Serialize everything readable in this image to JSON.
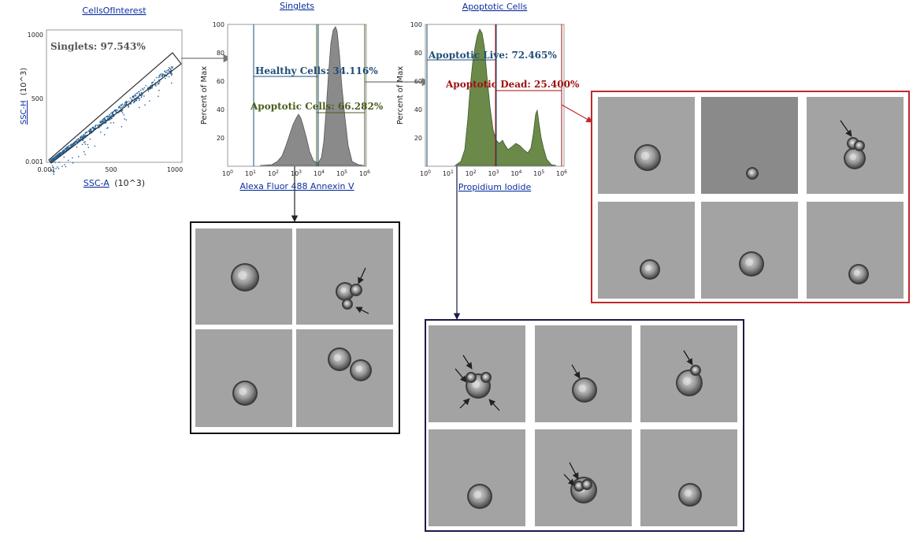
{
  "plots": {
    "scatter": {
      "title": "CellsOfInterest",
      "xlabel": "SSC-A",
      "xlabel_unit": "(10^3)",
      "ylabel": "SSC-H",
      "ylabel_unit": "(10^3)",
      "gate_label": "Singlets: 97.543%",
      "x_ticks": [
        "0.001",
        "500",
        "1000"
      ],
      "y_ticks": [
        "1000",
        "500",
        "0.001"
      ]
    },
    "annexin": {
      "title": "Singlets",
      "xlabel": "Alexa Fluor 488 Annexin V",
      "ylabel": "Percent of Max",
      "y_ticks": [
        "100",
        "80",
        "60",
        "40",
        "20"
      ],
      "gates": [
        {
          "label": "Healthy Cells: 34.116%",
          "color": "#1f4e79"
        },
        {
          "label": "Apoptotic Cells: 66.282%",
          "color": "#4a5e1f"
        }
      ]
    },
    "pi": {
      "title": "Apoptotic Cells",
      "xlabel": "Propidium Iodide",
      "ylabel": "Percent of Max",
      "y_ticks": [
        "100",
        "80",
        "60",
        "40",
        "20"
      ],
      "gates": [
        {
          "label": "Apoptotic Live: 72.465%",
          "color": "#1f4e79"
        },
        {
          "label": "Apoptotic Dead: 25.400%",
          "color": "#a01010"
        }
      ]
    },
    "log_ticks": [
      "10",
      "10",
      "10",
      "10",
      "10",
      "10",
      "10"
    ],
    "log_ticks_exp": [
      "0",
      "1",
      "2",
      "3",
      "4",
      "5",
      "6"
    ]
  },
  "image_panels": {
    "healthy": {
      "border_color": "#111111",
      "cells": 4
    },
    "live": {
      "border_color": "#1a1a4a",
      "cells": 6
    },
    "dead": {
      "border_color": "#c0282d",
      "cells": 6
    }
  },
  "colors": {
    "scatter_dots": "#1f5f9a",
    "annexin_fill": "#8a8a8a",
    "pi_fill": "#6b8a4a",
    "link_arrow": "#777777"
  }
}
